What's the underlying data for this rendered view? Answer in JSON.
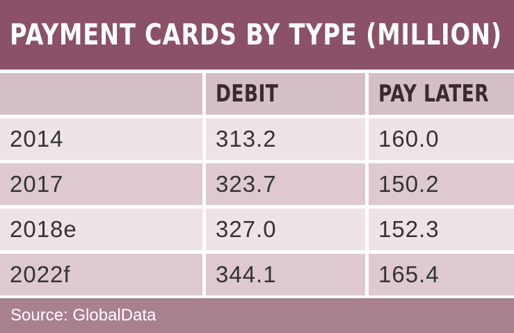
{
  "chart_data": {
    "type": "table",
    "title": "PAYMENT CARDS BY TYPE (MILLION)",
    "columns": [
      "",
      "DEBIT",
      "PAY LATER"
    ],
    "rows": [
      {
        "label": "2014",
        "debit": "313.2",
        "pay_later": "160.0"
      },
      {
        "label": "2017",
        "debit": "323.7",
        "pay_later": "150.2"
      },
      {
        "label": "2018e",
        "debit": "327.0",
        "pay_later": "152.3"
      },
      {
        "label": "2022f",
        "debit": "344.1",
        "pay_later": "165.4"
      }
    ],
    "source": "Source: GlobalData"
  },
  "colors": {
    "title_background": "#8a5168",
    "header_background": "#d5bfc6",
    "row_light": "#eee3e7",
    "row_dark": "#ddc9cf",
    "footer_background": "#a8808f"
  }
}
